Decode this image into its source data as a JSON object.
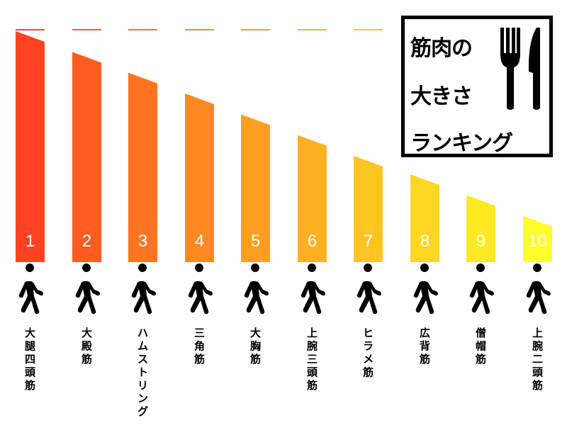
{
  "chart_data": {
    "type": "bar",
    "title": [
      "筋肉の",
      "大きさ",
      "ランキング"
    ],
    "categories": [
      "大腿四頭筋",
      "大殿筋",
      "ハムストリング",
      "三角筋",
      "大胸筋",
      "上腕三頭筋",
      "ヒラメ筋",
      "広背筋",
      "僧帽筋",
      "上腕二頭筋"
    ],
    "ranks": [
      "1",
      "2",
      "3",
      "4",
      "5",
      "6",
      "7",
      "8",
      "9",
      "10"
    ],
    "values": [
      100,
      91,
      82,
      73,
      64,
      55,
      46,
      38,
      29,
      20
    ],
    "ylim": [
      0,
      100
    ],
    "colors": [
      "#ff4322",
      "#ff5c22",
      "#ff7422",
      "#ff8a22",
      "#ff9f22",
      "#ffb122",
      "#ffc322",
      "#ffd622",
      "#ffea22",
      "#ffff2a"
    ],
    "grid": false,
    "legend": "none"
  },
  "icons": {
    "person": "walking-person-icon",
    "fork": "fork-icon",
    "knife": "knife-icon"
  }
}
